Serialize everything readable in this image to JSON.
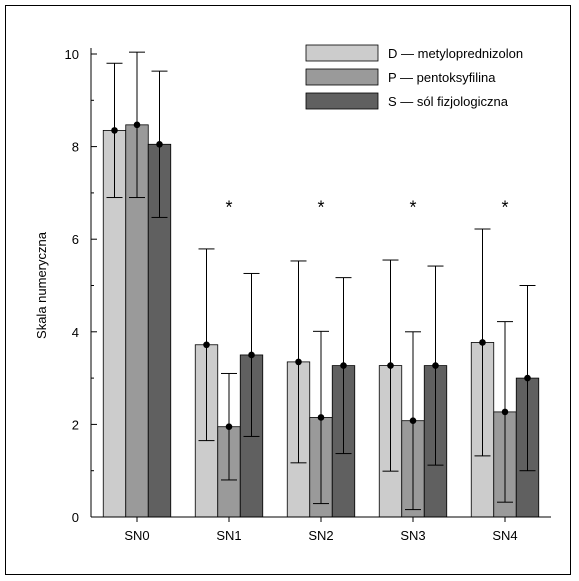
{
  "chart_data": {
    "type": "bar",
    "ylabel": "Skala numeryczna",
    "xlabel": "",
    "ylim": [
      0,
      10
    ],
    "yticks": [
      0,
      2,
      4,
      6,
      8,
      10
    ],
    "categories": [
      "SN0",
      "SN1",
      "SN2",
      "SN3",
      "SN4"
    ],
    "significance_markers": [
      "",
      "*",
      "*",
      "*",
      "*"
    ],
    "legend_position": "top-right",
    "error_bars": true,
    "series": [
      {
        "name": "D — metyloprednizolon",
        "color": "#cccccc",
        "values": [
          8.35,
          3.72,
          3.35,
          3.27,
          3.77
        ],
        "errors": [
          1.45,
          2.07,
          2.18,
          2.28,
          2.45
        ]
      },
      {
        "name": "P — pentoksyfilina",
        "color": "#9a9a9a",
        "values": [
          8.47,
          1.95,
          2.15,
          2.08,
          2.27
        ],
        "errors": [
          1.57,
          1.15,
          1.86,
          1.92,
          1.95
        ]
      },
      {
        "name": "S — sól fizjologiczna",
        "color": "#606060",
        "values": [
          8.05,
          3.5,
          3.27,
          3.27,
          3.0
        ],
        "errors": [
          1.58,
          1.76,
          1.9,
          2.15,
          2.0
        ]
      }
    ]
  }
}
